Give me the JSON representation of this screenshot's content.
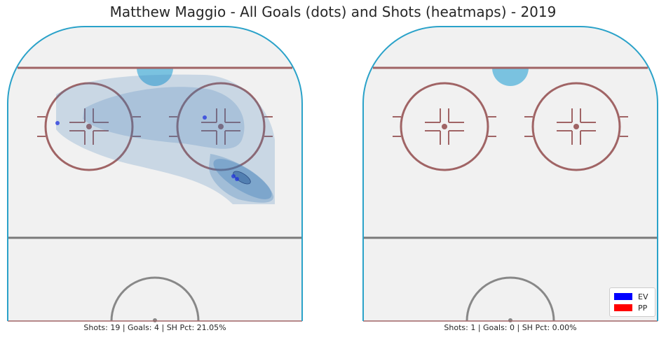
{
  "title": "Matthew Maggio - All Goals (dots) and Shots (heatmaps) - 2019",
  "panels": [
    {
      "caption": "Shots: 19 | Goals: 4 | SH Pct: 21.05%"
    },
    {
      "caption": "Shots: 1 | Goals: 0 | SH Pct: 0.00%"
    }
  ],
  "legend": [
    {
      "label": "EV",
      "color": "#0000ff"
    },
    {
      "label": "PP",
      "color": "#ff0000"
    }
  ],
  "colors": {
    "ice": "#f1f1f1",
    "boards": "#2aa2c9",
    "goal_line": "#a06465",
    "faceoff": "#a06465",
    "blue_line": "#7a7a7a",
    "crease": "#7ac2e0",
    "heatmap": "#3a7ab8",
    "goal_dot": "#2233dd"
  },
  "chart_data": {
    "type": "heatmap",
    "title": "Matthew Maggio - All Goals (dots) and Shots (heatmaps) - 2019",
    "panels": [
      {
        "shots": 19,
        "goals": 4,
        "sh_pct": "21.05%",
        "goal_points": [
          {
            "x": -60,
            "y": 74,
            "strength": "EV"
          },
          {
            "x": 27,
            "y": 75,
            "strength": "EV"
          },
          {
            "x": 28,
            "y": 58,
            "strength": "EV"
          },
          {
            "x": 33,
            "y": 49,
            "strength": "EV"
          }
        ],
        "shot_density_levels": 4
      },
      {
        "shots": 1,
        "goals": 0,
        "sh_pct": "0.00%",
        "goal_points": [],
        "shot_density_levels": 0
      }
    ],
    "legend": [
      "EV",
      "PP"
    ]
  }
}
